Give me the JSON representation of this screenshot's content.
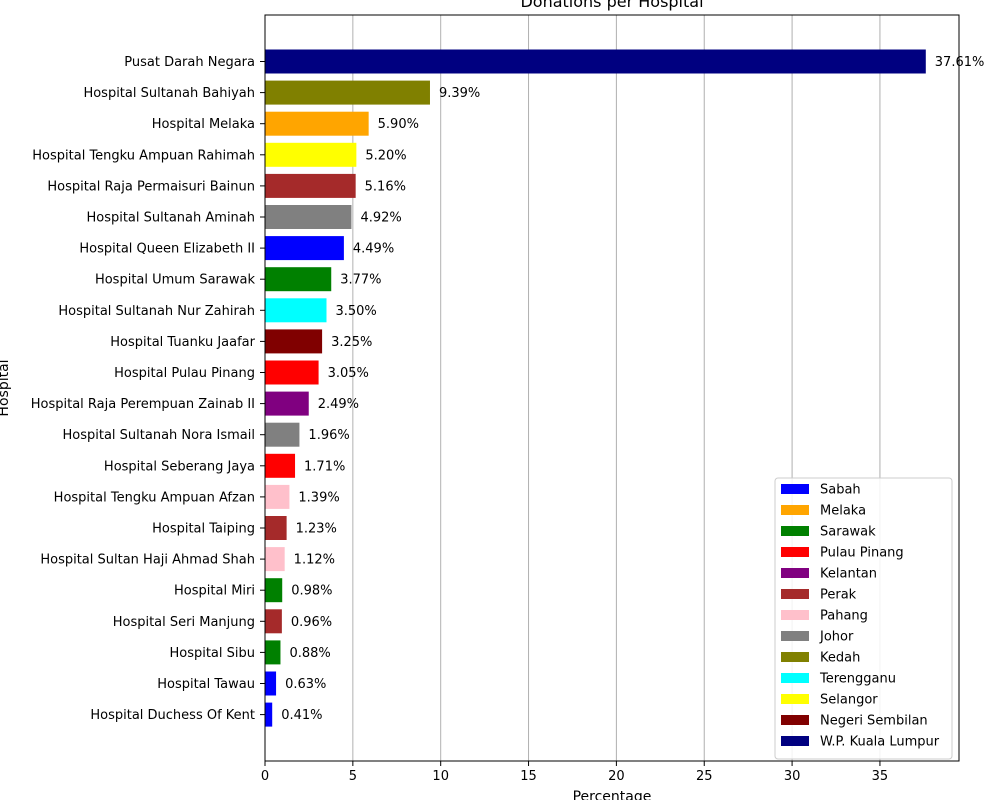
{
  "chart_data": {
    "type": "bar",
    "orientation": "horizontal",
    "title": "Donations per Hospital",
    "xlabel": "Percentage",
    "ylabel": "Hospital",
    "xlim": [
      0,
      39.5
    ],
    "xticks": [
      0,
      5,
      10,
      15,
      20,
      25,
      30,
      35
    ],
    "grid": "x",
    "legend_position": "bottom-right",
    "categories": [
      "Pusat Darah Negara",
      "Hospital Sultanah Bahiyah",
      "Hospital Melaka",
      "Hospital Tengku Ampuan Rahimah",
      "Hospital Raja Permaisuri Bainun",
      "Hospital Sultanah Aminah",
      "Hospital Queen Elizabeth II",
      "Hospital Umum Sarawak",
      "Hospital Sultanah Nur Zahirah",
      "Hospital Tuanku Jaafar",
      "Hospital Pulau Pinang",
      "Hospital Raja Perempuan Zainab II",
      "Hospital Sultanah Nora Ismail",
      "Hospital Seberang Jaya",
      "Hospital Tengku Ampuan Afzan",
      "Hospital Taiping",
      "Hospital Sultan Haji Ahmad Shah",
      "Hospital Miri",
      "Hospital Seri Manjung",
      "Hospital Sibu",
      "Hospital Tawau",
      "Hospital Duchess Of Kent"
    ],
    "values": [
      37.61,
      9.39,
      5.9,
      5.2,
      5.16,
      4.92,
      4.49,
      3.77,
      3.5,
      3.25,
      3.05,
      2.49,
      1.96,
      1.71,
      1.39,
      1.23,
      1.12,
      0.98,
      0.96,
      0.88,
      0.63,
      0.41
    ],
    "value_labels": [
      "37.61%",
      "9.39%",
      "5.90%",
      "5.20%",
      "5.16%",
      "4.92%",
      "4.49%",
      "3.77%",
      "3.50%",
      "3.25%",
      "3.05%",
      "2.49%",
      "1.96%",
      "1.71%",
      "1.39%",
      "1.23%",
      "1.12%",
      "0.98%",
      "0.96%",
      "0.88%",
      "0.63%",
      "0.41%"
    ],
    "states": [
      "W.P. Kuala Lumpur",
      "Kedah",
      "Melaka",
      "Selangor",
      "Perak",
      "Johor",
      "Sabah",
      "Sarawak",
      "Terengganu",
      "Negeri Sembilan",
      "Pulau Pinang",
      "Kelantan",
      "Johor",
      "Pulau Pinang",
      "Pahang",
      "Perak",
      "Pahang",
      "Sarawak",
      "Perak",
      "Sarawak",
      "Sabah",
      "Sabah"
    ],
    "legend": [
      {
        "name": "Sabah",
        "color": "#0000ff"
      },
      {
        "name": "Melaka",
        "color": "#ffa500"
      },
      {
        "name": "Sarawak",
        "color": "#008000"
      },
      {
        "name": "Pulau Pinang",
        "color": "#ff0000"
      },
      {
        "name": "Kelantan",
        "color": "#800080"
      },
      {
        "name": "Perak",
        "color": "#a52a2a"
      },
      {
        "name": "Pahang",
        "color": "#ffc0cb"
      },
      {
        "name": "Johor",
        "color": "#808080"
      },
      {
        "name": "Kedah",
        "color": "#808000"
      },
      {
        "name": "Terengganu",
        "color": "#00ffff"
      },
      {
        "name": "Selangor",
        "color": "#ffff00"
      },
      {
        "name": "Negeri Sembilan",
        "color": "#800000"
      },
      {
        "name": "W.P. Kuala Lumpur",
        "color": "#000080"
      }
    ]
  }
}
